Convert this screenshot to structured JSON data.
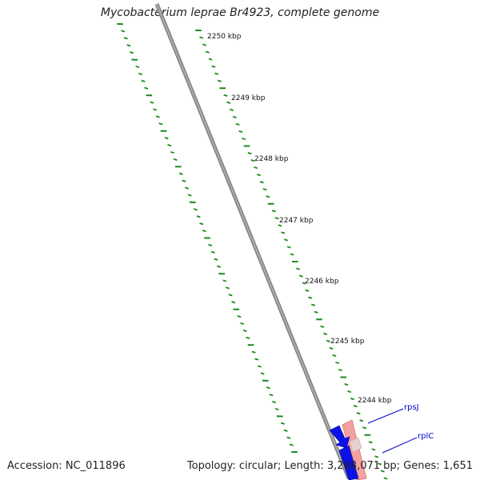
{
  "title": "Mycobacterium leprae Br4923, complete genome",
  "accession": "Accession: NC_011896",
  "topology_info": "Topology: circular; Length: 3,268,071 bp; Genes: 1,651",
  "ticks": [
    "2250 kbp",
    "2249 kbp",
    "2248 kbp",
    "2247 kbp",
    "2246 kbp",
    "2245 kbp",
    "2244 kbp"
  ],
  "genes": [
    {
      "label": "rpsJ",
      "color": "#0000cc"
    },
    {
      "label": "rplC",
      "color": "#0000cc"
    }
  ],
  "colors": {
    "backbone": "#777777",
    "tick_marks": "#1a8a1a",
    "forward_genes": "#f08080",
    "reverse_genes": "#0000ee"
  }
}
